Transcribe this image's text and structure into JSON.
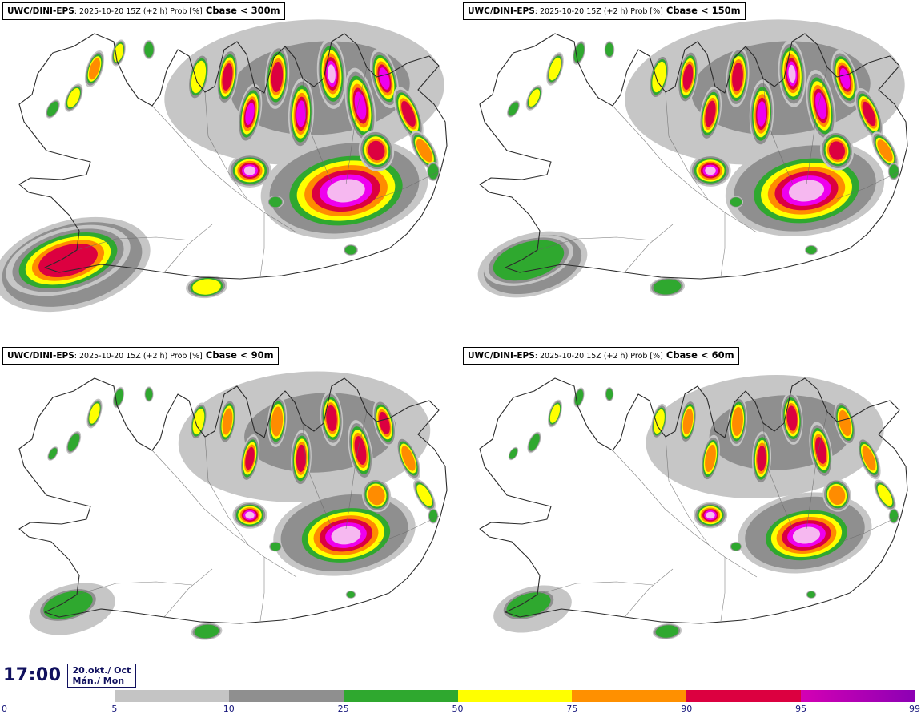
{
  "panels": [
    {
      "model": "UWC/DINI-EPS",
      "meta": ": 2025-10-20 15Z (+2 h) Prob [%]",
      "threshold": "Cbase < 300m"
    },
    {
      "model": "UWC/DINI-EPS",
      "meta": ": 2025-10-20 15Z (+2 h) Prob [%]",
      "threshold": "Cbase < 150m"
    },
    {
      "model": "UWC/DINI-EPS",
      "meta": ": 2025-10-20 15Z (+2 h) Prob [%]",
      "threshold": "Cbase < 90m"
    },
    {
      "model": "UWC/DINI-EPS",
      "meta": ": 2025-10-20 15Z (+2 h) Prob [%]",
      "threshold": "Cbase < 60m"
    }
  ],
  "footer": {
    "time": "17:00",
    "date_line1": "20.okt./ Oct",
    "date_line2": "Mán./ Mon"
  },
  "legend": {
    "stops": [
      {
        "value": "0",
        "color": "#ffffff"
      },
      {
        "value": "5",
        "color": "#c4c4c4"
      },
      {
        "value": "10",
        "color": "#8f8f8f"
      },
      {
        "value": "25",
        "color": "#2fa82f"
      },
      {
        "value": "50",
        "color": "#ffff00"
      },
      {
        "value": "75",
        "color": "#ff9000"
      },
      {
        "value": "90",
        "color": "#dc0040"
      },
      {
        "value": "95",
        "color": "#d400b4"
      },
      {
        "value": "99",
        "color": "#8c00b4"
      }
    ]
  },
  "map_palette": {
    "levels": [
      "#c6c6c6",
      "#8f8f8f",
      "#2fa82f",
      "#ffff00",
      "#ff8c00",
      "#dc0040",
      "#ee00ee",
      "#f6b8f0"
    ]
  }
}
